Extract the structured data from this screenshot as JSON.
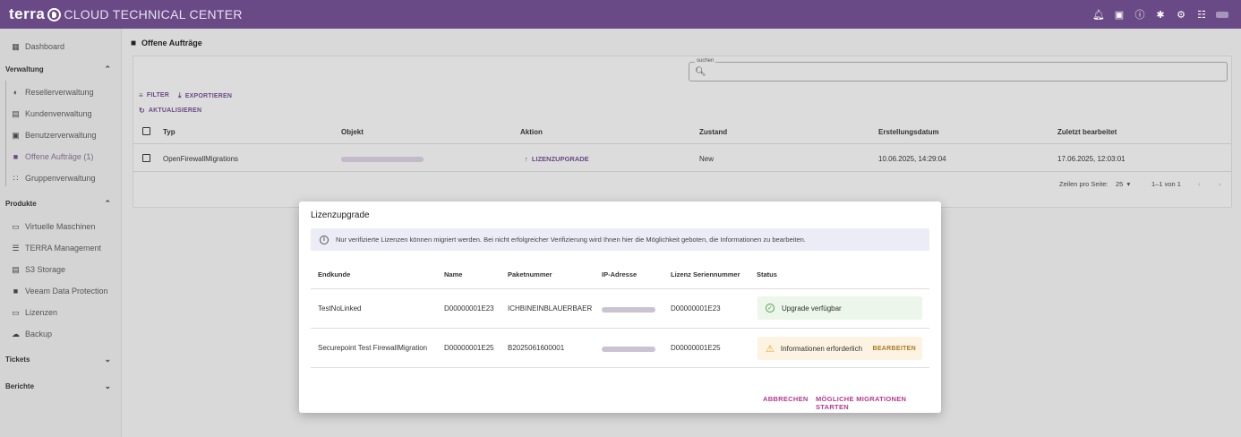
{
  "colors": {
    "brand": "#6a4a86",
    "accent": "#b33a8f",
    "success": "#5b9d4e",
    "warning": "#e3a52e"
  },
  "header": {
    "logo_terra": "terra",
    "logo_rest": "CLOUD TECHNICAL CENTER",
    "icons": [
      "bell-icon",
      "document-icon",
      "help-icon",
      "settings-icon",
      "gear-icon",
      "qr-icon"
    ]
  },
  "sidebar": {
    "dashboard": "Dashboard",
    "sections": {
      "verwaltung": "Verwaltung",
      "produkte": "Produkte",
      "tickets": "Tickets",
      "berichte": "Berichte"
    },
    "verwaltung_items": [
      "Resellerverwaltung",
      "Kundenverwaltung",
      "Benutzerverwaltung",
      "Offene Aufträge (1)",
      "Gruppenverwaltung"
    ],
    "produkte_items": [
      "Virtuelle Maschinen",
      "TERRA Management",
      "S3 Storage",
      "Veeam Data Protection",
      "Lizenzen",
      "Backup"
    ]
  },
  "page": {
    "title": "Offene Aufträge",
    "search_label": "suchen",
    "filter": "FILTER",
    "export": "EXPORTIEREN",
    "refresh": "AKTUALISIEREN",
    "columns": [
      "Typ",
      "Objekt",
      "Aktion",
      "Zustand",
      "Erstellungsdatum",
      "Zuletzt bearbeitet"
    ],
    "row": {
      "typ": "OpenFirewallMigrations",
      "aktion": "LIZENZUPGRADE",
      "zustand": "New",
      "erstellt": "10.06.2025, 14:29:04",
      "bearbeitet": "17.06.2025, 12:03:01"
    },
    "pager": {
      "rows_label": "Zeilen pro Seite:",
      "rows_value": "25",
      "range": "1–1 von 1"
    }
  },
  "dialog": {
    "title": "Lizenzupgrade",
    "info": "Nur verifizierte Lizenzen können migriert werden. Bei nicht erfolgreicher Verifizierung wird Ihnen hier die Möglichkeit geboten, die Informationen zu bearbeiten.",
    "columns": [
      "Endkunde",
      "Name",
      "Paketnummer",
      "IP-Adresse",
      "Lizenz Seriennummer",
      "Status"
    ],
    "rows": [
      {
        "endkunde": "TestNoLinked",
        "name": "D00000001E23",
        "paket": "ICHBINEINBLAUERBAER",
        "serial": "D00000001E23",
        "status": "Upgrade verfügbar"
      },
      {
        "endkunde": "Securepoint Test FirewallMigration",
        "name": "D00000001E25",
        "paket": "B2025061600001",
        "serial": "D00000001E25",
        "status": "Informationen erforderlich",
        "edit": "BEARBEITEN"
      }
    ],
    "cancel": "ABBRECHEN",
    "start": "MÖGLICHE MIGRATIONEN STARTEN"
  }
}
